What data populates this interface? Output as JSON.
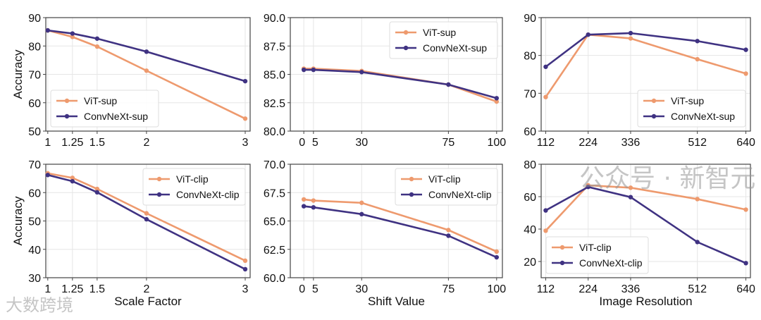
{
  "colors": {
    "vit": "#EE9A6E",
    "convnext": "#3F3282",
    "axis": "#444444",
    "grid": "#e6e6e6"
  },
  "watermarks": {
    "left": "大数跨境",
    "right": "公众号 · 新智元"
  },
  "chart_data": [
    {
      "type": "line",
      "xlabel": "",
      "ylabel": "Accuracy",
      "x": [
        1,
        1.25,
        1.5,
        2,
        3
      ],
      "xticks": [
        "1",
        "1.25",
        "1.5",
        "2",
        "3"
      ],
      "xlim": [
        0.98,
        3.05
      ],
      "ylim": [
        50,
        90
      ],
      "yticks": [
        "50",
        "60",
        "70",
        "80",
        "90"
      ],
      "legend": "lower-left",
      "series": [
        {
          "name": "ViT-sup",
          "values": [
            85.5,
            83.2,
            79.8,
            71.3,
            54.4
          ]
        },
        {
          "name": "ConvNeXt-sup",
          "values": [
            85.5,
            84.4,
            82.6,
            78.0,
            67.6
          ]
        }
      ]
    },
    {
      "type": "line",
      "xlabel": "",
      "ylabel": "",
      "x": [
        0,
        5,
        30,
        75,
        100
      ],
      "xticks": [
        "0",
        "5",
        "30",
        "75",
        "100"
      ],
      "xlim": [
        -7,
        103
      ],
      "ylim": [
        80,
        90
      ],
      "yticks": [
        "80.0",
        "82.5",
        "85.0",
        "87.5",
        "90.0"
      ],
      "legend": "upper-right",
      "series": [
        {
          "name": "ViT-sup",
          "values": [
            85.5,
            85.5,
            85.3,
            84.1,
            82.6
          ]
        },
        {
          "name": "ConvNeXt-sup",
          "values": [
            85.4,
            85.4,
            85.2,
            84.1,
            82.9
          ]
        }
      ]
    },
    {
      "type": "line",
      "xlabel": "",
      "ylabel": "",
      "x": [
        112,
        224,
        336,
        512,
        640
      ],
      "xticks": [
        "112",
        "224",
        "336",
        "512",
        "640"
      ],
      "xlim": [
        100,
        652
      ],
      "ylim": [
        60,
        90
      ],
      "yticks": [
        "60",
        "70",
        "80",
        "90"
      ],
      "legend": "lower-right",
      "series": [
        {
          "name": "ViT-sup",
          "values": [
            69.0,
            85.5,
            84.5,
            79.0,
            75.2
          ]
        },
        {
          "name": "ConvNeXt-sup",
          "values": [
            77.0,
            85.5,
            85.9,
            83.8,
            81.5
          ]
        }
      ]
    },
    {
      "type": "line",
      "xlabel": "Scale Factor",
      "ylabel": "Accuracy",
      "x": [
        1,
        1.25,
        1.5,
        2,
        3
      ],
      "xticks": [
        "1",
        "1.25",
        "1.5",
        "2",
        "3"
      ],
      "xlim": [
        0.98,
        3.05
      ],
      "ylim": [
        30,
        70
      ],
      "yticks": [
        "30",
        "40",
        "50",
        "60",
        "70"
      ],
      "legend": "upper-right",
      "series": [
        {
          "name": "ViT-clip",
          "values": [
            66.8,
            65.2,
            61.3,
            52.7,
            36.0
          ]
        },
        {
          "name": "ConvNeXt-clip",
          "values": [
            66.2,
            64.0,
            60.1,
            50.6,
            33.0
          ]
        }
      ]
    },
    {
      "type": "line",
      "xlabel": "Shift Value",
      "ylabel": "",
      "x": [
        0,
        5,
        30,
        75,
        100
      ],
      "xticks": [
        "0",
        "5",
        "30",
        "75",
        "100"
      ],
      "xlim": [
        -7,
        103
      ],
      "ylim": [
        60,
        70
      ],
      "yticks": [
        "60.0",
        "62.5",
        "65.0",
        "67.5",
        "70.0"
      ],
      "legend": "upper-right",
      "series": [
        {
          "name": "ViT-clip",
          "values": [
            66.9,
            66.8,
            66.6,
            64.2,
            62.3
          ]
        },
        {
          "name": "ConvNeXt-clip",
          "values": [
            66.3,
            66.2,
            65.6,
            63.7,
            61.8
          ]
        }
      ]
    },
    {
      "type": "line",
      "xlabel": "Image Resolution",
      "ylabel": "",
      "x": [
        112,
        224,
        336,
        512,
        640
      ],
      "xticks": [
        "112",
        "224",
        "336",
        "512",
        "640"
      ],
      "xlim": [
        100,
        652
      ],
      "ylim": [
        10,
        80
      ],
      "yticks": [
        "20",
        "40",
        "60",
        "80"
      ],
      "legend": "lower-left",
      "series": [
        {
          "name": "ViT-clip",
          "values": [
            39.0,
            67.0,
            65.5,
            58.5,
            52.0
          ]
        },
        {
          "name": "ConvNeXt-clip",
          "values": [
            51.5,
            66.0,
            59.7,
            32.0,
            19.0
          ]
        }
      ]
    }
  ]
}
